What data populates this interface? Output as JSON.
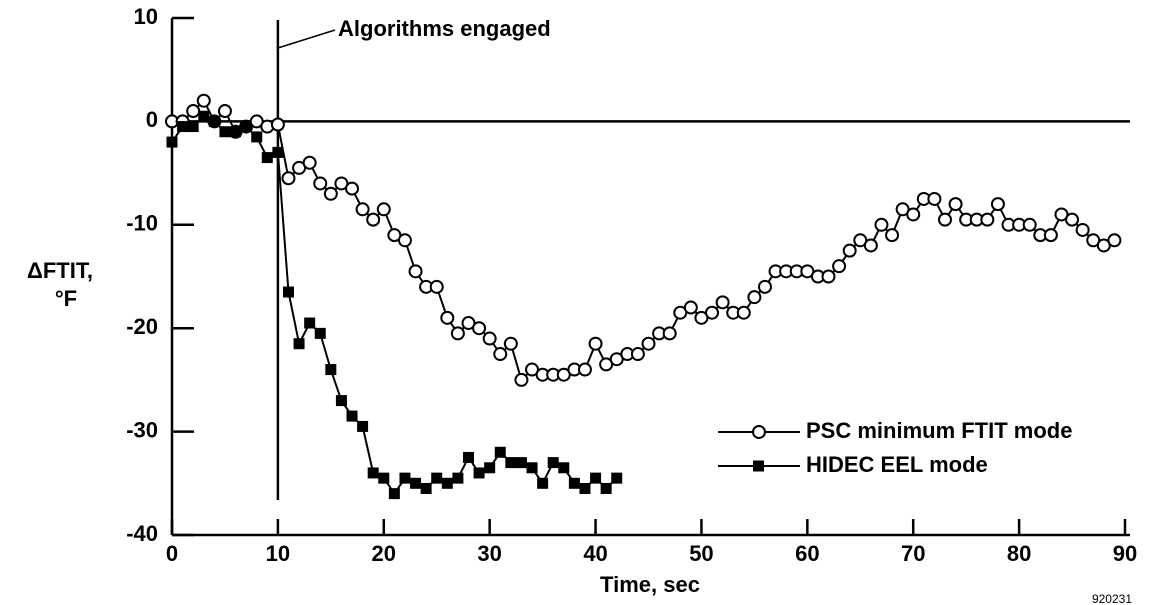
{
  "chart_data": {
    "type": "line",
    "xlabel": "Time, sec",
    "ylabel": [
      "ΔFTIT,",
      "°F"
    ],
    "xlim": [
      0,
      90
    ],
    "xticks": [
      0,
      10,
      20,
      30,
      40,
      50,
      60,
      70,
      80,
      90
    ],
    "ylim": [
      -40,
      10
    ],
    "yticks": [
      10,
      0,
      -10,
      -20,
      -30,
      -40
    ],
    "legend": "lower right",
    "annotation": {
      "text": "Algorithms engaged",
      "x": 10
    },
    "figure_id": "920231",
    "series": [
      {
        "name": "PSC minimum FTIT mode",
        "color": "#000000",
        "marker": "open-circle",
        "x": [
          0,
          1,
          2,
          3,
          4,
          5,
          6,
          7,
          8,
          9,
          10,
          11,
          12,
          13,
          14,
          15,
          16,
          17,
          18,
          19,
          20,
          21,
          22,
          23,
          24,
          25,
          26,
          27,
          28,
          29,
          30,
          31,
          32,
          33,
          34,
          35,
          36,
          37,
          38,
          39,
          40,
          41,
          42,
          43,
          44,
          45,
          46,
          47,
          48,
          49,
          50,
          51,
          52,
          53,
          54,
          55,
          56,
          57,
          58,
          59,
          60,
          61,
          62,
          63,
          64,
          65,
          66,
          67,
          68,
          69,
          70,
          71,
          72,
          73,
          74,
          75,
          76,
          77,
          78,
          79,
          80,
          81,
          82,
          83,
          84,
          85,
          86,
          87,
          88,
          89
        ],
        "values": [
          0,
          0,
          1,
          2,
          0,
          1,
          -1,
          -0.5,
          0,
          -0.5,
          -0.3,
          -5.5,
          -4.5,
          -4,
          -6,
          -7,
          -6,
          -6.5,
          -8.5,
          -9.5,
          -8.5,
          -11,
          -11.5,
          -14.5,
          -16,
          -16,
          -19,
          -20.5,
          -19.5,
          -20,
          -21,
          -22.5,
          -21.5,
          -25,
          -24,
          -24.5,
          -24.5,
          -24.5,
          -24,
          -24,
          -21.5,
          -23.5,
          -23,
          -22.5,
          -22.5,
          -21.5,
          -20.5,
          -20.5,
          -18.5,
          -18,
          -19,
          -18.5,
          -17.5,
          -18.5,
          -18.5,
          -17,
          -16,
          -14.5,
          -14.5,
          -14.5,
          -14.5,
          -15,
          -15,
          -14,
          -12.5,
          -11.5,
          -12,
          -10,
          -11,
          -8.5,
          -9,
          -7.5,
          -7.5,
          -9.5,
          -8,
          -9.5,
          -9.5,
          -9.5,
          -8,
          -10,
          -10,
          -10,
          -11,
          -11,
          -9,
          -9.5,
          -10.5,
          -11.5,
          -12,
          -11.5
        ]
      },
      {
        "name": "HIDEC EEL mode",
        "color": "#000000",
        "marker": "filled-square",
        "x": [
          0,
          1,
          2,
          3,
          4,
          5,
          6,
          7,
          8,
          9,
          10,
          11,
          12,
          13,
          14,
          15,
          16,
          17,
          18,
          19,
          20,
          21,
          22,
          23,
          24,
          25,
          26,
          27,
          28,
          29,
          30,
          31,
          32,
          33,
          34,
          35,
          36,
          37,
          38,
          39,
          40,
          41,
          42
        ],
        "values": [
          -2,
          -0.5,
          -0.5,
          0.5,
          0,
          -1,
          -1,
          -0.5,
          -1.5,
          -3.5,
          -3,
          -16.5,
          -21.5,
          -19.5,
          -20.5,
          -24,
          -27,
          -28.5,
          -29.5,
          -34,
          -34.5,
          -36,
          -34.5,
          -35,
          -35.5,
          -34.5,
          -35,
          -34.5,
          -32.5,
          -34,
          -33.5,
          -32,
          -33,
          -33,
          -33.5,
          -35,
          -33,
          -33.5,
          -35,
          -35.5,
          -34.5,
          -35.5,
          -34.5
        ]
      }
    ]
  }
}
